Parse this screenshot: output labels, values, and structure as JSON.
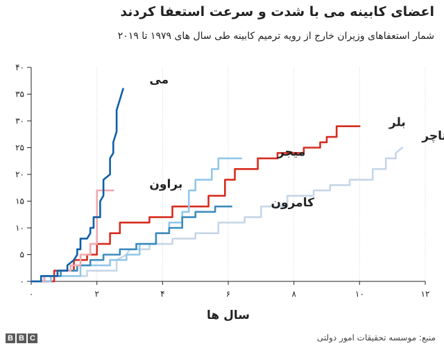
{
  "title": "اعضای کابینه می با شدت و سرعت استعفا کردند",
  "subtitle": "شمار استعفاهای وزیران خارج از رویه ترمیم کابینه طی سال های ۱۹۷۹ تا ۲۰۱۹",
  "source": "منبع: موسسه تحقیقات امور دولتی",
  "logo": "BBC",
  "chart_data": {
    "type": "line",
    "xlabel": "سال ها",
    "ylabel": "",
    "xlim": [
      0,
      12
    ],
    "ylim": [
      0,
      40
    ],
    "x_ticks": [
      {
        "value": 0,
        "label": "۰"
      },
      {
        "value": 2,
        "label": "۲"
      },
      {
        "value": 4,
        "label": "۴"
      },
      {
        "value": 6,
        "label": "۶"
      },
      {
        "value": 8,
        "label": "۸"
      },
      {
        "value": 10,
        "label": "۱۰"
      },
      {
        "value": 12,
        "label": "۱۲"
      }
    ],
    "y_ticks": [
      {
        "value": 0,
        "label": "۰"
      },
      {
        "value": 5,
        "label": "۵"
      },
      {
        "value": 10,
        "label": "۱۰"
      },
      {
        "value": 15,
        "label": "۱۵"
      },
      {
        "value": 20,
        "label": "۲۰"
      },
      {
        "value": 25,
        "label": "۲۵"
      },
      {
        "value": 30,
        "label": "۳۰"
      },
      {
        "value": 35,
        "label": "۳۵"
      },
      {
        "value": 40,
        "label": "۴۰"
      }
    ],
    "grid": "vertical",
    "series": [
      {
        "name": "تاچر",
        "color": "#c6d6e8",
        "x": [
          0,
          0.6,
          0.6,
          1.7,
          1.7,
          2.6,
          2.6,
          2.9,
          3.0,
          3.6,
          3.6,
          4.3,
          4.3,
          5.0,
          5.0,
          5.7,
          5.7,
          6.5,
          6.5,
          7.0,
          7.0,
          7.8,
          7.8,
          8.6,
          8.6,
          9.1,
          9.1,
          9.7,
          9.7,
          10.4,
          10.4,
          10.8,
          10.8,
          11.1,
          11.1,
          11.3
        ],
        "y": [
          0,
          0,
          1,
          1,
          2,
          2,
          4,
          5,
          6,
          6,
          7,
          7,
          8,
          8,
          9,
          9,
          11,
          11,
          12,
          12,
          14,
          14,
          16,
          16,
          17,
          17,
          18,
          18,
          19,
          19,
          21,
          21,
          23,
          23,
          24,
          25
        ]
      },
      {
        "name": "بلر",
        "color": "#d62c1e",
        "x": [
          0,
          0.7,
          0.7,
          1.3,
          1.3,
          1.7,
          1.7,
          2.0,
          2.0,
          2.4,
          2.4,
          2.7,
          2.7,
          3.6,
          3.6,
          4.3,
          4.3,
          5.4,
          5.4,
          5.9,
          5.9,
          6.2,
          6.2,
          6.9,
          6.9,
          7.5,
          7.5,
          8.3,
          8.3,
          8.8,
          8.8,
          9.0,
          9.0,
          9.3,
          9.3,
          9.7,
          9.7,
          10.0
        ],
        "y": [
          0,
          0,
          2,
          2,
          4,
          4,
          5,
          5,
          7,
          7,
          9,
          9,
          11,
          11,
          12,
          12,
          14,
          14,
          16,
          16,
          19,
          19,
          21,
          21,
          23,
          23,
          24,
          24,
          25,
          25,
          26,
          26,
          27,
          27,
          29,
          29,
          29,
          29
        ]
      },
      {
        "name": "میجر",
        "color": "#92c7ea",
        "x": [
          0,
          0.6,
          0.6,
          1.5,
          1.5,
          2.4,
          2.4,
          2.9,
          2.9,
          3.3,
          3.3,
          3.8,
          3.8,
          4.2,
          4.2,
          4.6,
          4.6,
          4.8,
          4.8,
          5.0,
          5.0,
          5.5,
          5.5,
          5.7,
          5.7,
          6.1,
          6.1,
          6.4
        ],
        "y": [
          0,
          0,
          1,
          1,
          3,
          3,
          4,
          4,
          5,
          5,
          7,
          7,
          9,
          9,
          11,
          11,
          13,
          13,
          17,
          17,
          19,
          19,
          21,
          21,
          23,
          23,
          23,
          23
        ]
      },
      {
        "name": "کامرون",
        "color": "#3d8bbd",
        "x": [
          0,
          0.4,
          0.4,
          0.9,
          0.9,
          1.4,
          1.4,
          1.8,
          1.8,
          2.2,
          2.2,
          2.7,
          2.7,
          3.2,
          3.2,
          3.8,
          3.8,
          4.2,
          4.2,
          4.6,
          4.6,
          5.0,
          5.0,
          5.6,
          5.6,
          6.1
        ],
        "y": [
          0,
          0,
          1,
          1,
          2,
          2,
          3,
          3,
          4,
          4,
          5,
          5,
          6,
          6,
          7,
          7,
          9,
          9,
          10,
          10,
          12,
          12,
          13,
          13,
          14,
          14
        ]
      },
      {
        "name": "براون",
        "color": "#f0a9b0",
        "x": [
          0,
          0.4,
          0.4,
          0.8,
          0.8,
          1.2,
          1.2,
          1.5,
          1.5,
          1.8,
          1.8,
          2.0,
          2.0,
          2.2,
          2.2,
          2.5
        ],
        "y": [
          0,
          0,
          1,
          1,
          2,
          2,
          3,
          3,
          5,
          5,
          7,
          7,
          17,
          17,
          17,
          17
        ]
      },
      {
        "name": "می",
        "color": "#0e5fa8",
        "x": [
          0,
          0.3,
          0.3,
          0.8,
          0.8,
          1.1,
          1.1,
          1.3,
          1.4,
          1.4,
          1.5,
          1.5,
          1.7,
          1.8,
          1.8,
          1.9,
          1.9,
          2.1,
          2.1,
          2.2,
          2.2,
          2.4,
          2.4,
          2.5,
          2.5,
          2.6,
          2.6,
          2.7,
          2.8
        ],
        "y": [
          0,
          0,
          1,
          1,
          2,
          2,
          3,
          4,
          5,
          6,
          6,
          8,
          8,
          9,
          10,
          10,
          12,
          12,
          15,
          16,
          19,
          20,
          23,
          24,
          26,
          28,
          32,
          34,
          36
        ]
      }
    ],
    "labels": [
      {
        "series": "می",
        "text": "می",
        "x": 3.6,
        "y": 37
      },
      {
        "series": "براون",
        "text": "براون",
        "x": 3.6,
        "y": 17.5
      },
      {
        "series": "میجر",
        "text": "میجر",
        "x": 7.5,
        "y": 23.5
      },
      {
        "series": "کامرون",
        "text": "کامرون",
        "x": 7.3,
        "y": 14
      },
      {
        "series": "بلر",
        "text": "بلر",
        "x": 10.9,
        "y": 29
      },
      {
        "series": "تاچر",
        "text": "تاچر",
        "x": 11.9,
        "y": 26.5
      }
    ]
  }
}
